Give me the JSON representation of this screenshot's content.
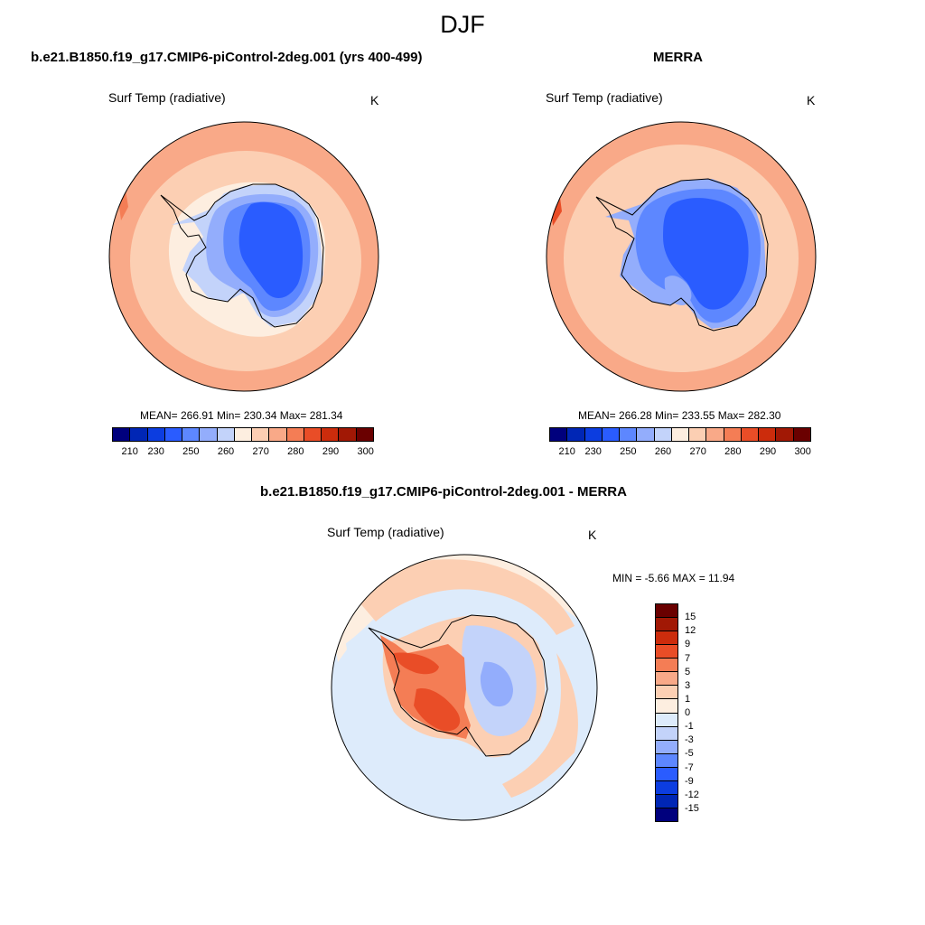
{
  "season": "DJF",
  "panels": {
    "model": {
      "title": "b.e21.B1850.f19_g17.CMIP6-piControl-2deg.001 (yrs 400-499)",
      "variable": "Surf Temp (radiative)",
      "units": "K",
      "stats": "MEAN= 266.91  Min= 230.34  Max= 281.34"
    },
    "obs": {
      "title": "MERRA",
      "variable": "Surf Temp (radiative)",
      "units": "K",
      "stats": "MEAN= 266.28  Min= 233.55  Max= 282.30"
    },
    "diff": {
      "title": "b.e21.B1850.f19_g17.CMIP6-piControl-2deg.001 - MERRA",
      "variable": "Surf Temp (radiative)",
      "units": "K",
      "stats": "MIN =  -5.66 MAX =  11.94"
    }
  },
  "colorbar_abs": {
    "colors": [
      "#00007d",
      "#0026b5",
      "#0c3de0",
      "#2a5cff",
      "#5d87ff",
      "#93adfc",
      "#c3d3fa",
      "#fdeee0",
      "#fccfb3",
      "#f9a988",
      "#f47d55",
      "#e94d27",
      "#cc2c0c",
      "#a11805",
      "#6a0000"
    ],
    "ticks": [
      "210",
      "230",
      "250",
      "260",
      "270",
      "280",
      "290",
      "300"
    ]
  },
  "colorbar_diff": {
    "colors": [
      "#6a0000",
      "#a11805",
      "#cc2c0c",
      "#e94d27",
      "#f47d55",
      "#f9a988",
      "#fccfb3",
      "#fdeee0",
      "#ddebfb",
      "#c3d3fa",
      "#93adfc",
      "#5d87ff",
      "#2a5cff",
      "#0c3de0",
      "#0026b5",
      "#00007d"
    ],
    "ticks": [
      "15",
      "12",
      "9",
      "7",
      "5",
      "3",
      "1",
      "0",
      "-1",
      "-3",
      "-5",
      "-7",
      "-9",
      "-12",
      "-15"
    ]
  },
  "map_colors": {
    "ocean_outer": "#f9a988",
    "ocean_mid": "#fccfb3",
    "coast_ice": "#fdeee0",
    "ice_light": "#c3d3fa",
    "ice_mid": "#93adfc",
    "ice_deep": "#5d87ff",
    "plateau": "#2a5cff",
    "diff_neg_light": "#ddebfb",
    "diff_pos_light": "#fccfb3",
    "diff_pos_mid": "#f47d55",
    "diff_pos_strong": "#e94d27"
  }
}
